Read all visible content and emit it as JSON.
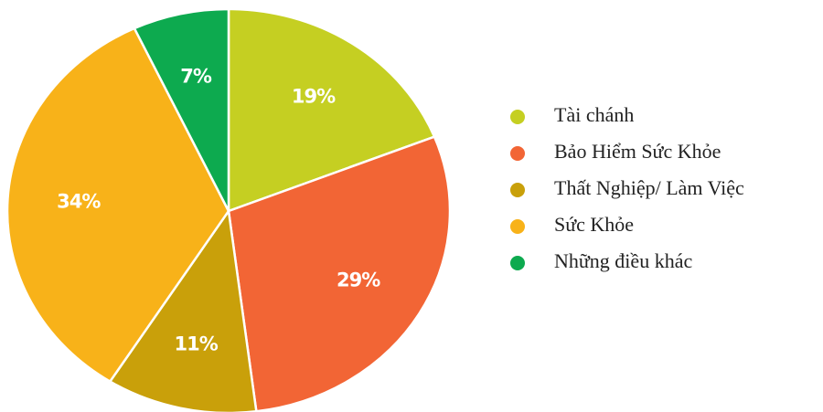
{
  "chart_data": {
    "type": "pie",
    "categories": [
      "Tài chánh",
      "Bảo Hiểm Sức Khỏe",
      "Thất Nghiệp/ Làm Việc",
      "Sức Khỏe",
      "Những  điều  khác"
    ],
    "values": [
      19,
      29,
      11,
      34,
      7
    ],
    "value_labels": [
      "19%",
      "29%",
      "11%",
      "34%",
      "7%"
    ],
    "colors": [
      "#c5cf22",
      "#f26535",
      "#c9a00a",
      "#f8b219",
      "#0daa4f"
    ],
    "legend": "right"
  }
}
